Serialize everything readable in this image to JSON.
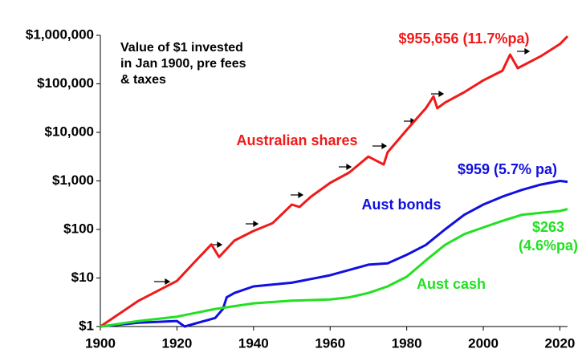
{
  "chart_data": {
    "type": "line",
    "title": [
      "Value of $1 invested",
      "in Jan 1900, pre fees",
      "& taxes"
    ],
    "xlim": [
      1900,
      2022
    ],
    "xticks": [
      1900,
      1920,
      1940,
      1960,
      1980,
      2000,
      2020
    ],
    "ylim": [
      1,
      1000000
    ],
    "log_y": true,
    "yticks": [
      {
        "value": 1,
        "label": "$1"
      },
      {
        "value": 10,
        "label": "$10"
      },
      {
        "value": 100,
        "label": "$100"
      },
      {
        "value": 1000,
        "label": "$1,000"
      },
      {
        "value": 10000,
        "label": "$10,000"
      },
      {
        "value": 100000,
        "label": "$100,000"
      },
      {
        "value": 1000000,
        "label": "$1,000,000"
      }
    ],
    "series": [
      {
        "name": "Australian shares",
        "color": "#f01a1a",
        "end_label": [
          "$955,656 (11.7%pa)"
        ],
        "x": [
          1900,
          1910,
          1920,
          1925,
          1929,
          1931,
          1935,
          1940,
          1945,
          1950,
          1952,
          1955,
          1960,
          1965,
          1970,
          1974,
          1975,
          1980,
          1985,
          1987,
          1988,
          1990,
          1995,
          2000,
          2005,
          2007,
          2009,
          2015,
          2020,
          2022
        ],
        "values": [
          1,
          3.4,
          8.7,
          23,
          49,
          27,
          59,
          93,
          135,
          325,
          290,
          475,
          910,
          1490,
          3170,
          2170,
          3870,
          11200,
          31500,
          55000,
          31500,
          41000,
          67000,
          118000,
          187000,
          400000,
          210000,
          370000,
          660000,
          955656
        ]
      },
      {
        "name": "Aust bonds",
        "color": "#1010e0",
        "end_label": [
          "$959 (5.7% pa)"
        ],
        "x": [
          1900,
          1910,
          1920,
          1922,
          1930,
          1932,
          1933,
          1935,
          1940,
          1950,
          1960,
          1970,
          1975,
          1980,
          1985,
          1990,
          1995,
          2000,
          2005,
          2010,
          2015,
          2020,
          2022
        ],
        "values": [
          1,
          1.2,
          1.3,
          1.0,
          1.5,
          2.3,
          4,
          4.9,
          6.7,
          8,
          11.4,
          18.8,
          20,
          30,
          48,
          100,
          200,
          325,
          475,
          650,
          840,
          1000,
          959
        ]
      },
      {
        "name": "Aust cash",
        "color": "#22e022",
        "end_label": [
          "$263",
          "(4.6%pa)"
        ],
        "x": [
          1900,
          1910,
          1920,
          1930,
          1940,
          1950,
          1960,
          1965,
          1970,
          1975,
          1980,
          1985,
          1990,
          1995,
          2000,
          2005,
          2010,
          2015,
          2020,
          2022
        ],
        "values": [
          1,
          1.3,
          1.6,
          2.3,
          3,
          3.4,
          3.6,
          4,
          4.9,
          6.7,
          10.6,
          23,
          48,
          80,
          110,
          150,
          200,
          220,
          240,
          263
        ]
      }
    ]
  }
}
